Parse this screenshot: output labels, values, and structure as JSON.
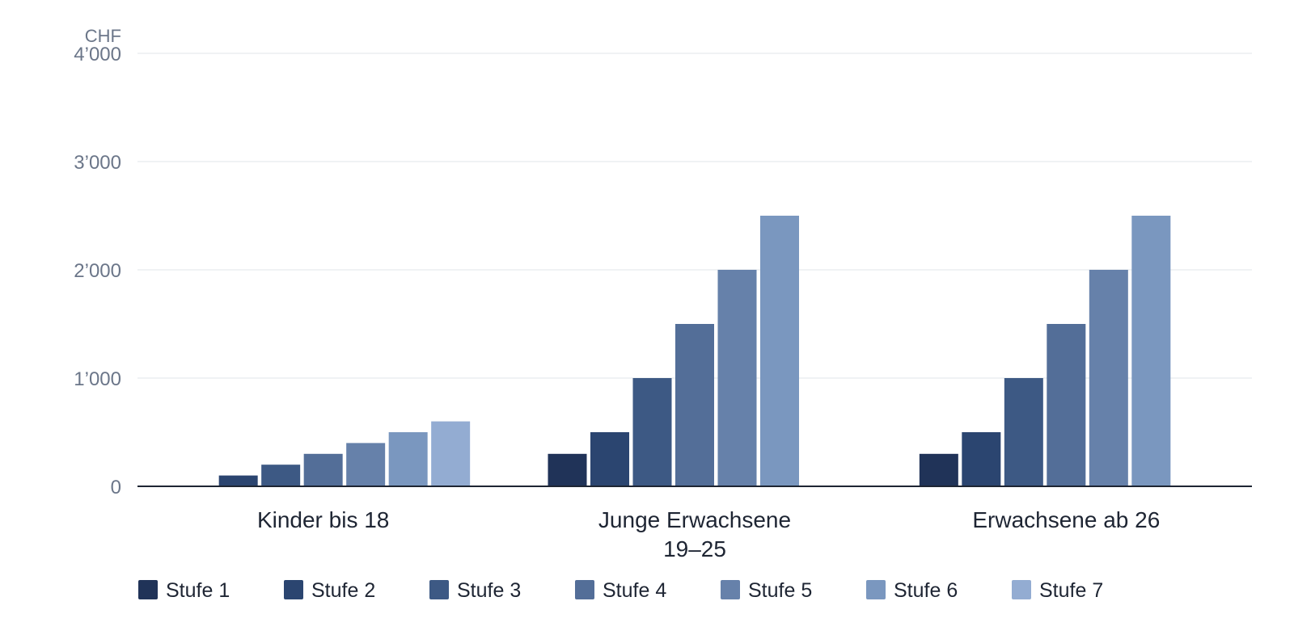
{
  "chart_data": {
    "type": "bar",
    "y_unit": "CHF",
    "categories": [
      [
        "Kinder bis 18"
      ],
      [
        "Junge Erwachsene",
        "19–25"
      ],
      [
        "Erwachsene ab 26"
      ]
    ],
    "series": [
      {
        "name": "Stufe 1",
        "color": "#203358",
        "values": [
          0,
          300,
          300
        ]
      },
      {
        "name": "Stufe 2",
        "color": "#2b4570",
        "values": [
          100,
          500,
          500
        ]
      },
      {
        "name": "Stufe 3",
        "color": "#3d5984",
        "values": [
          200,
          1000,
          1000
        ]
      },
      {
        "name": "Stufe 4",
        "color": "#536e98",
        "values": [
          300,
          1500,
          1500
        ]
      },
      {
        "name": "Stufe 5",
        "color": "#6681aa",
        "values": [
          400,
          2000,
          2000
        ]
      },
      {
        "name": "Stufe 6",
        "color": "#7a97bf",
        "values": [
          500,
          2500,
          2500
        ]
      },
      {
        "name": "Stufe 7",
        "color": "#93acd2",
        "values": [
          600,
          0,
          0
        ]
      }
    ],
    "ylim": [
      0,
      4000
    ],
    "y_ticks": [
      0,
      1000,
      2000,
      3000,
      4000
    ],
    "y_tick_labels": [
      "0",
      "1’000",
      "2’000",
      "3’000",
      "4’000"
    ],
    "grid": true,
    "legend_position": "bottom"
  }
}
